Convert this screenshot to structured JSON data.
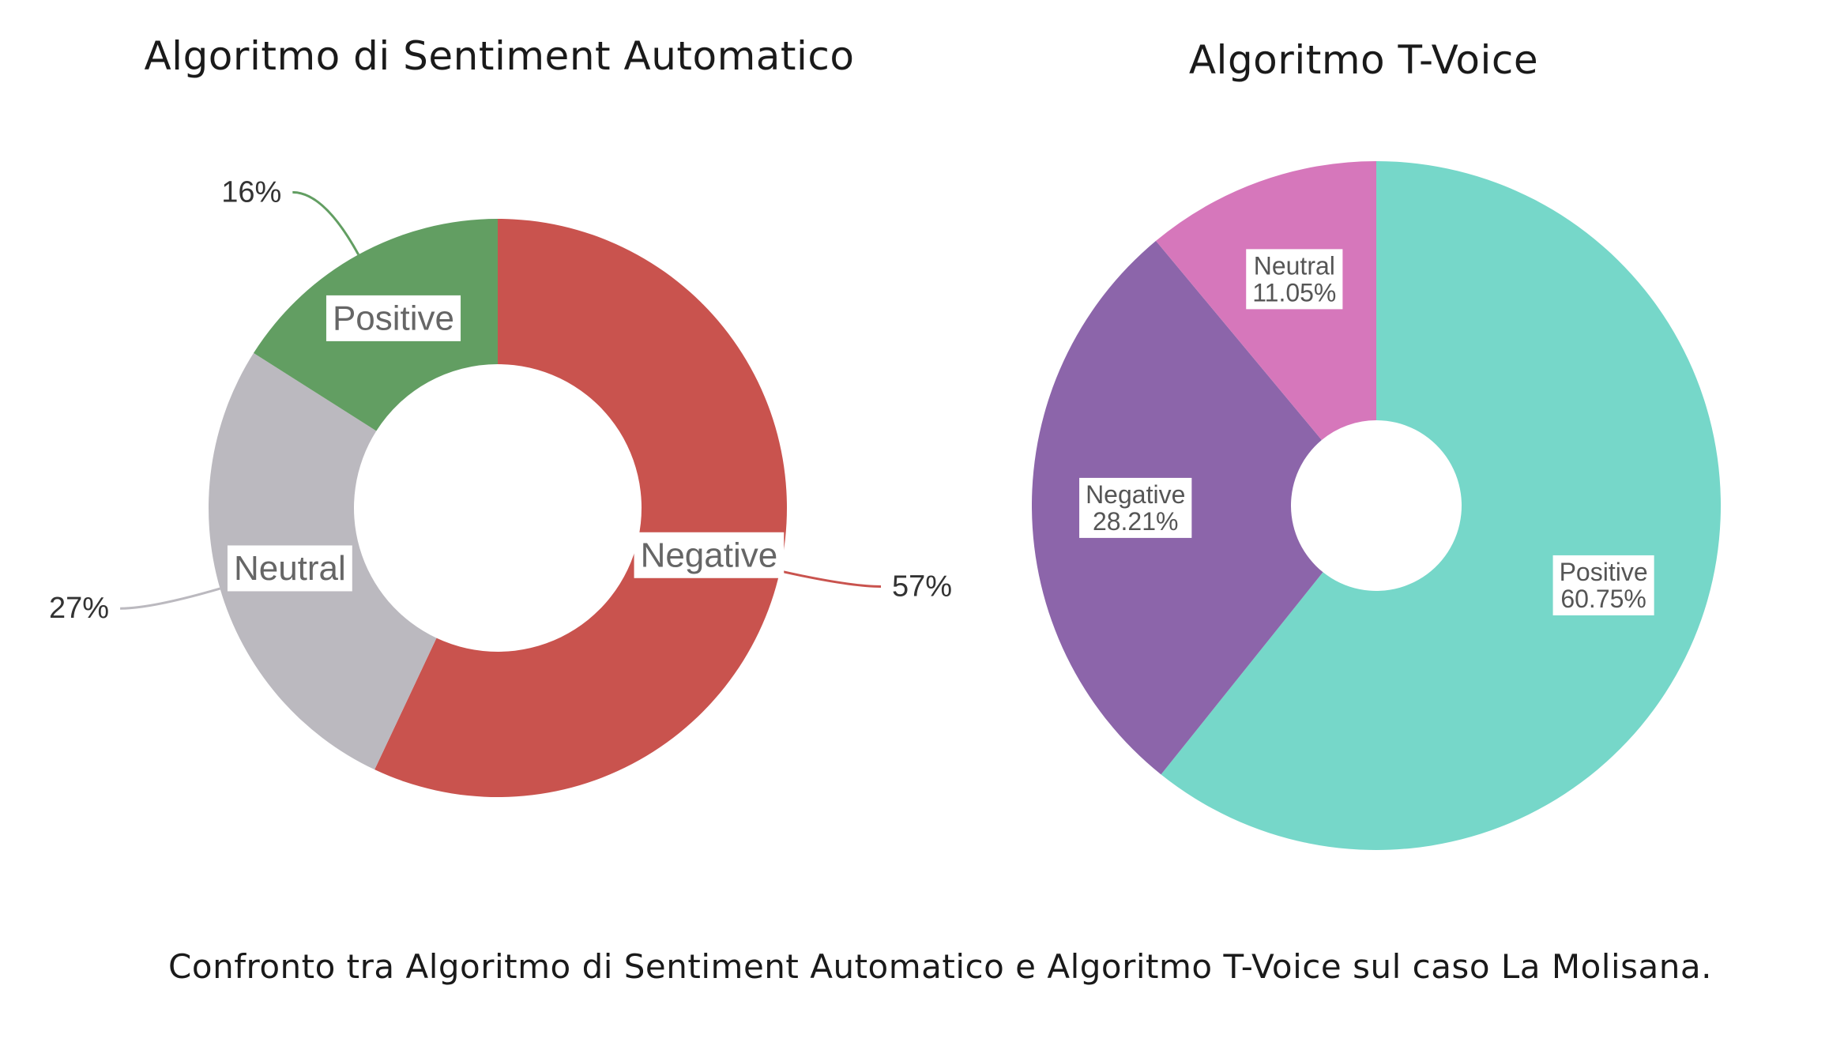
{
  "caption": "Confronto tra Algoritmo di Sentiment Automatico e Algoritmo T-Voice sul caso La Molisana.",
  "chart_data": [
    {
      "type": "pie",
      "variant": "donut",
      "title": "Algoritmo di Sentiment Automatico",
      "slices": [
        {
          "label": "Negative",
          "value": 57,
          "value_text": "57%",
          "color": "#c9534e"
        },
        {
          "label": "Neutral",
          "value": 27,
          "value_text": "27%",
          "color": "#bbb9bf"
        },
        {
          "label": "Positive",
          "value": 16,
          "value_text": "16%",
          "color": "#629e62"
        }
      ]
    },
    {
      "type": "pie",
      "variant": "donut",
      "title": "Algoritmo T-Voice",
      "slices": [
        {
          "label": "Positive",
          "value": 60.75,
          "value_text": "60.75%",
          "color": "#76d7c9"
        },
        {
          "label": "Negative",
          "value": 28.21,
          "value_text": "28.21%",
          "color": "#8c65aa"
        },
        {
          "label": "Neutral",
          "value": 11.05,
          "value_text": "11.05%",
          "color": "#d677bb"
        }
      ]
    }
  ]
}
